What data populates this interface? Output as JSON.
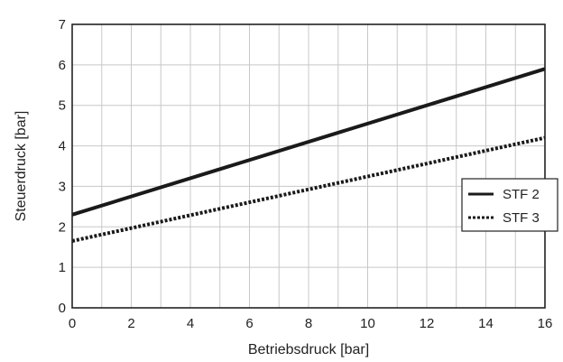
{
  "chart_data": {
    "type": "line",
    "xlabel": "Betriebsdruck [bar]",
    "ylabel": "Steuerdruck [bar]",
    "xlim": [
      0,
      16
    ],
    "ylim": [
      0,
      7
    ],
    "xticks": [
      "0",
      "2",
      "4",
      "6",
      "8",
      "10",
      "12",
      "14",
      "16"
    ],
    "yticks": [
      "0",
      "1",
      "2",
      "3",
      "4",
      "5",
      "6",
      "7"
    ],
    "grid": true,
    "grid_minor_x": 1,
    "legend_position": "right",
    "series": [
      {
        "name": "STF 2",
        "style": "solid",
        "color": "#1a1a1a",
        "x": [
          0,
          16
        ],
        "y": [
          2.3,
          5.9
        ]
      },
      {
        "name": "STF 3",
        "style": "dotted",
        "color": "#1a1a1a",
        "x": [
          0,
          16
        ],
        "y": [
          1.65,
          4.2
        ]
      }
    ]
  }
}
